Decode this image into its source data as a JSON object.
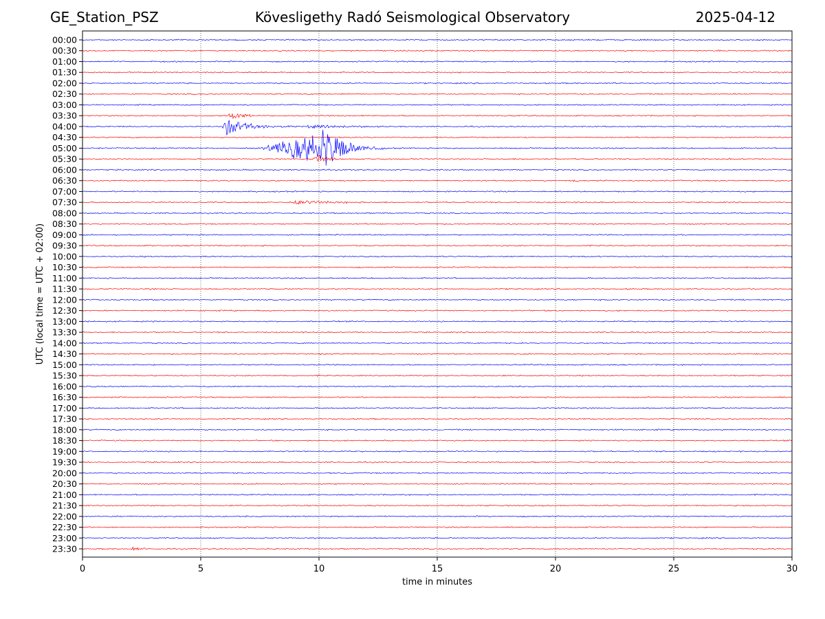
{
  "header": {
    "station": "GE_Station_PSZ",
    "title": "Kövesligethy Radó Seismological Observatory",
    "date": "2025-04-12"
  },
  "chart_data": {
    "type": "line",
    "subtype": "helicorder",
    "title": "Kövesligethy Radó Seismological Observatory",
    "xlabel": "time in minutes",
    "ylabel": "UTC (local time = UTC + 02:00)",
    "xlim": [
      0,
      30
    ],
    "x_ticks": [
      0,
      5,
      10,
      15,
      20,
      25,
      30
    ],
    "x_gridlines": [
      5,
      10,
      15,
      20,
      25
    ],
    "grid": "vertical dotted",
    "trace_colors": [
      "#0000ff",
      "#ff0000"
    ],
    "row_labels": [
      "00:00",
      "00:30",
      "01:00",
      "01:30",
      "02:00",
      "02:30",
      "03:00",
      "03:30",
      "04:00",
      "04:30",
      "05:00",
      "05:30",
      "06:00",
      "06:30",
      "07:00",
      "07:30",
      "08:00",
      "08:30",
      "09:00",
      "09:30",
      "10:00",
      "10:30",
      "11:00",
      "11:30",
      "12:00",
      "12:30",
      "13:00",
      "13:30",
      "14:00",
      "14:30",
      "15:00",
      "15:30",
      "16:00",
      "16:30",
      "17:00",
      "17:30",
      "18:00",
      "18:30",
      "19:00",
      "19:30",
      "20:00",
      "20:30",
      "21:00",
      "21:30",
      "22:00",
      "22:30",
      "23:00",
      "23:30"
    ],
    "events": [
      {
        "row": "03:30",
        "start_min": 6.1,
        "peak_min": 6.3,
        "end_min": 8.0,
        "amplitude": 5,
        "decay": 0.6
      },
      {
        "row": "04:00",
        "start_min": 5.9,
        "peak_min": 6.1,
        "end_min": 10.5,
        "amplitude": 12,
        "decay": 1.0
      },
      {
        "row": "04:00",
        "start_min": 9.3,
        "peak_min": 9.6,
        "end_min": 13.5,
        "amplitude": 3,
        "decay": 1.5
      },
      {
        "row": "05:00",
        "start_min": 7.5,
        "peak_min": 10.2,
        "end_min": 12.8,
        "amplitude": 28,
        "decay": 0.9
      },
      {
        "row": "05:30",
        "start_min": 9.6,
        "peak_min": 10.0,
        "end_min": 10.8,
        "amplitude": 5,
        "decay": 0.5
      },
      {
        "row": "06:30",
        "start_min": 20.5,
        "peak_min": 20.7,
        "end_min": 21.3,
        "amplitude": 2,
        "decay": 0.4
      },
      {
        "row": "07:30",
        "start_min": 8.6,
        "peak_min": 9.0,
        "end_min": 12.5,
        "amplitude": 3,
        "decay": 1.5
      },
      {
        "row": "23:30",
        "start_min": 1.9,
        "peak_min": 2.1,
        "end_min": 3.0,
        "amplitude": 2.5,
        "decay": 0.5
      }
    ]
  }
}
